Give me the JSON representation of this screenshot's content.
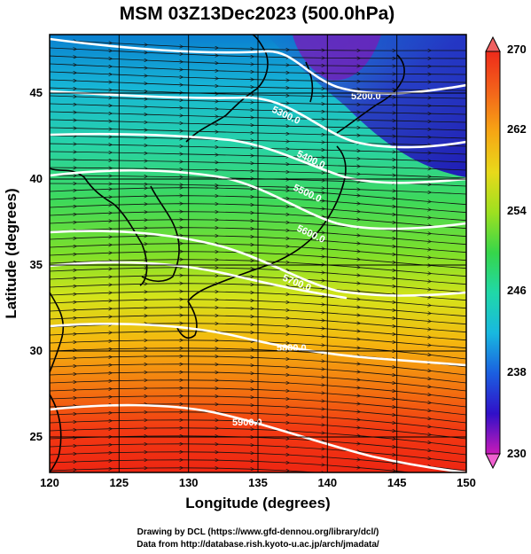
{
  "title": "MSM 03Z13Dec2023 (500.0hPa)",
  "xlabel": "Longitude (degrees)",
  "ylabel": "Latitude  (degrees)",
  "x_ticks": [
    "120",
    "125",
    "130",
    "135",
    "140",
    "145",
    "150"
  ],
  "y_ticks": [
    "25",
    "30",
    "35",
    "40",
    "45"
  ],
  "colorbar": {
    "ticks": [
      "270",
      "262",
      "254",
      "246",
      "238",
      "230"
    ],
    "min": 230,
    "max": 270
  },
  "contour_labels": [
    "5200.0",
    "5300.0",
    "5400.0",
    "5500.0",
    "5600.0",
    "5700.0",
    "5800.0",
    "5900.0"
  ],
  "credits": {
    "line1": "Drawing by DCL (https://www.gfd-dennou.org/library/dcl/)",
    "line2": "Data from http://database.rish.kyoto-u.ac.jp/arch/jmadata/"
  },
  "chart_data": {
    "type": "heatmap",
    "field": "temperature at 500 hPa (colour shading, K)",
    "contour_field": "geopotential height (m), white contours",
    "vector_field": "wind (streamline arrows, westerly flow)",
    "xlim": [
      120,
      150
    ],
    "ylim": [
      22.5,
      48
    ],
    "colorbar_range": [
      230,
      270
    ],
    "height_contours": [
      5200,
      5300,
      5400,
      5500,
      5600,
      5700,
      5800,
      5900
    ]
  }
}
